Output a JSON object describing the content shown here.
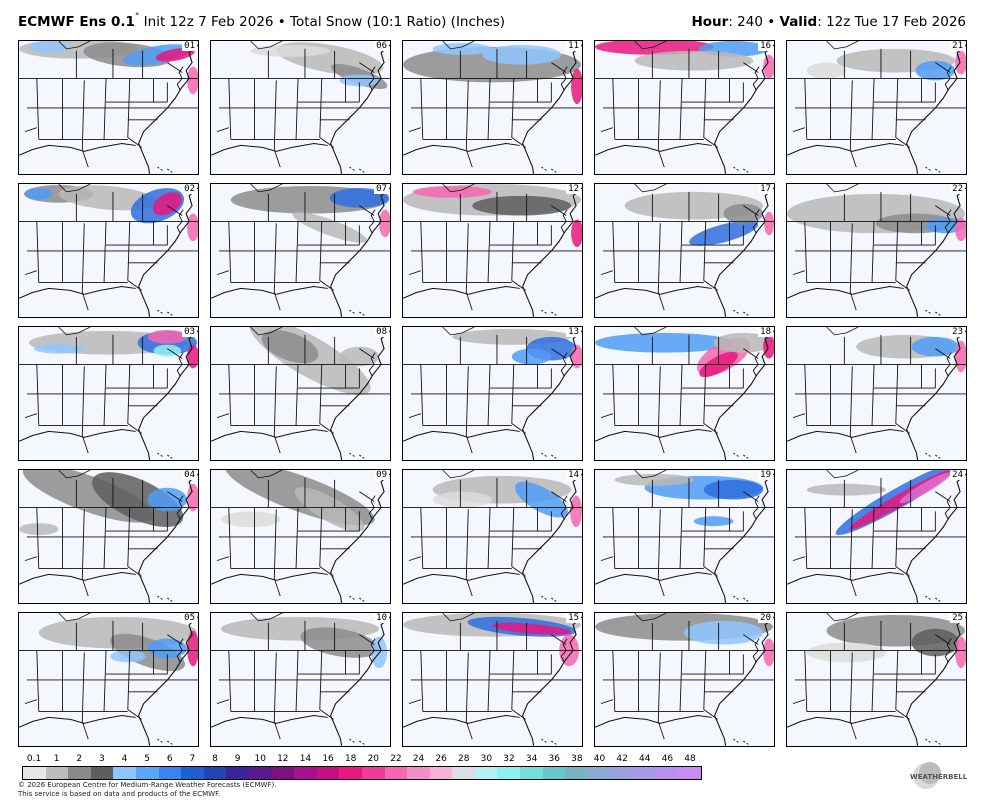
{
  "header": {
    "model": "ECMWF Ens 0.1",
    "degree": "°",
    "rest": " Init 12z 7 Feb 2026 • Total Snow (10:1 Ratio) (Inches)",
    "hour_label": "Hour",
    "hour_value": ": 240 • ",
    "valid_label": "Valid",
    "valid_value": ": 12z Tue 17 Feb 2026"
  },
  "members": [
    "01",
    "02",
    "03",
    "04",
    "05",
    "06",
    "07",
    "08",
    "09",
    "10",
    "11",
    "12",
    "13",
    "14",
    "15",
    "16",
    "17",
    "18",
    "19",
    "20",
    "21",
    "22",
    "23",
    "24",
    "25"
  ],
  "legend": {
    "ticks": [
      "0.1",
      "1",
      "2",
      "3",
      "4",
      "5",
      "6",
      "7",
      "8",
      "9",
      "10",
      "12",
      "14",
      "16",
      "18",
      "20",
      "22",
      "24",
      "26",
      "28",
      "30",
      "32",
      "34",
      "36",
      "38",
      "40",
      "42",
      "44",
      "46",
      "48"
    ],
    "colors": [
      "#e6e6e6",
      "#bdbdbd",
      "#8a8a8a",
      "#5e5e5e",
      "#8fc6ff",
      "#5aa7f5",
      "#3a84ef",
      "#1f5fd6",
      "#2443b5",
      "#3a2597",
      "#5b1a8f",
      "#7c1281",
      "#a5118f",
      "#c70f84",
      "#e8187c",
      "#f23b97",
      "#f567b0",
      "#f28fc6",
      "#f5b3da",
      "#dddde8",
      "#b6f2f2",
      "#8ff0f0",
      "#76e0d8",
      "#66c8c8",
      "#7ab4c2",
      "#8aa9d4",
      "#9aa0e0",
      "#a898ea",
      "#b98ff2",
      "#c98cf5"
    ]
  },
  "footer": {
    "line1": "© 2026 European Centre for Medium-Range Weather Forecasts (ECMWF).",
    "line2": "This service is based on data and products of the ECMWF."
  },
  "logo": {
    "text": "WEATHERBELL"
  }
}
